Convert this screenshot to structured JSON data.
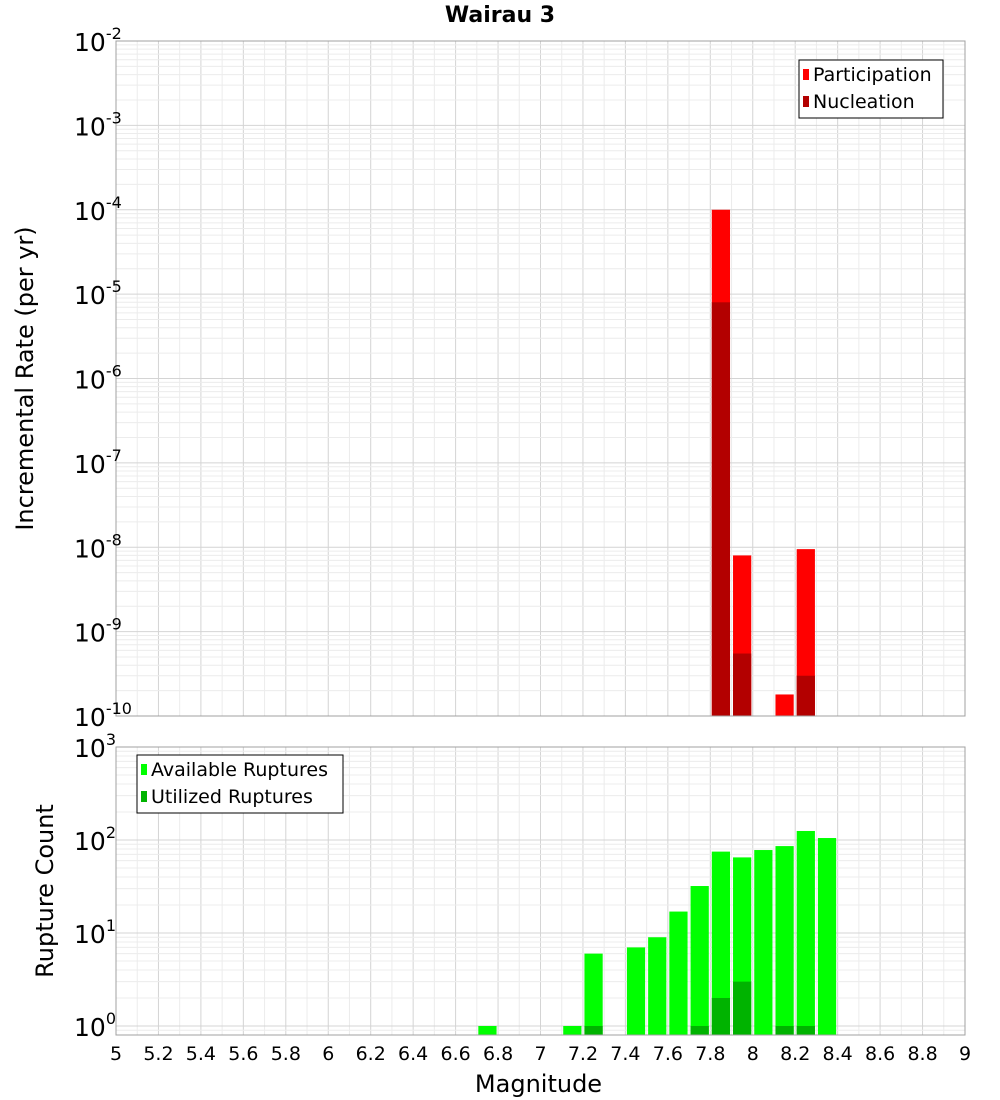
{
  "title": "Wairau 3",
  "colors": {
    "participation": "#ff0000",
    "nucleation": "#b30000",
    "available": "#00ff00",
    "utilized": "#00b300",
    "grid_minor": "#ececec",
    "grid_major": "#d4d4d4",
    "frame": "#a0a0a0"
  },
  "chart_data": [
    {
      "type": "bar",
      "scale": "log",
      "ylabel": "Incremental Rate (per yr)",
      "xlabel": "",
      "xlim": [
        5,
        9
      ],
      "ylim": [
        1e-10,
        0.01
      ],
      "bin_width": 0.1,
      "yticks": [
        {
          "value": 1e-10,
          "base": "10",
          "exp": "-10"
        },
        {
          "value": 1e-09,
          "base": "10",
          "exp": "-9"
        },
        {
          "value": 1e-08,
          "base": "10",
          "exp": "-8"
        },
        {
          "value": 1e-07,
          "base": "10",
          "exp": "-7"
        },
        {
          "value": 1e-06,
          "base": "10",
          "exp": "-6"
        },
        {
          "value": 1e-05,
          "base": "10",
          "exp": "-5"
        },
        {
          "value": 0.0001,
          "base": "10",
          "exp": "-4"
        },
        {
          "value": 0.001,
          "base": "10",
          "exp": "-3"
        },
        {
          "value": 0.01,
          "base": "10",
          "exp": "-2"
        }
      ],
      "legend": {
        "placement": "top-right"
      },
      "series": [
        {
          "name": "Participation",
          "color_key": "participation",
          "x": [
            7.85,
            7.95,
            8.15,
            8.25
          ],
          "values": [
            0.0001,
            8e-09,
            1.8e-10,
            9.5e-09
          ]
        },
        {
          "name": "Nucleation",
          "color_key": "nucleation",
          "x": [
            7.85,
            7.95,
            8.25
          ],
          "values": [
            8e-06,
            5.5e-10,
            3e-10
          ]
        }
      ]
    },
    {
      "type": "bar",
      "scale": "log",
      "ylabel": "Rupture Count",
      "xlabel": "Magnitude",
      "xlim": [
        5,
        9
      ],
      "ylim": [
        0.8,
        1000
      ],
      "bin_width": 0.1,
      "yticks": [
        {
          "value": 1,
          "base": "10",
          "exp": "0"
        },
        {
          "value": 10,
          "base": "10",
          "exp": "1"
        },
        {
          "value": 100,
          "base": "10",
          "exp": "2"
        },
        {
          "value": 1000,
          "base": "10",
          "exp": "3"
        }
      ],
      "xticks": [
        "5",
        "5.2",
        "5.4",
        "5.6",
        "5.8",
        "6",
        "6.2",
        "6.4",
        "6.6",
        "6.8",
        "7",
        "7.2",
        "7.4",
        "7.6",
        "7.8",
        "8",
        "8.2",
        "8.4",
        "8.6",
        "8.8",
        "9"
      ],
      "legend": {
        "placement": "top-left"
      },
      "series": [
        {
          "name": "Available Ruptures",
          "color_key": "available",
          "x": [
            6.75,
            7.15,
            7.25,
            7.45,
            7.55,
            7.65,
            7.75,
            7.85,
            7.95,
            8.05,
            8.15,
            8.25,
            8.35
          ],
          "values": [
            1,
            1,
            6,
            7,
            9,
            17,
            32,
            75,
            65,
            78,
            86,
            125,
            105
          ]
        },
        {
          "name": "Utilized Ruptures",
          "color_key": "utilized",
          "x": [
            7.25,
            7.75,
            7.85,
            7.95,
            8.15,
            8.25
          ],
          "values": [
            1,
            1,
            2,
            3,
            1,
            1
          ]
        }
      ]
    }
  ]
}
